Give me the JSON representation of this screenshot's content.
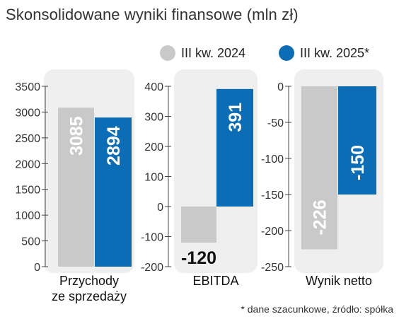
{
  "title": "Skonsolidowane wyniki finansowe (mln zł)",
  "note": "* dane szacunkowe, źródło: spółka",
  "colors": {
    "series_a": "#c9c9c9",
    "series_b": "#0b6db5",
    "panel_bg": "#efefef",
    "axis": "#444444"
  },
  "chart_data": {
    "type": "bar",
    "title": "Skonsolidowane wyniki finansowe (mln zł)",
    "legend": "top-right",
    "grid": false,
    "series_names": [
      "III kw. 2024",
      "III kw. 2025*"
    ],
    "panels": [
      {
        "category": "Przychody ze sprzedaży",
        "category_lines": [
          "Przychody",
          "ze sprzedaży"
        ],
        "ylim": [
          0,
          3500
        ],
        "ticks": [
          0,
          500,
          1000,
          1500,
          2000,
          2500,
          3000,
          3500
        ],
        "tick_labels": [
          "0",
          "500",
          "1000",
          "1500",
          "2000",
          "2500",
          "3000",
          "3500"
        ],
        "values": [
          3085,
          2894
        ],
        "value_labels": [
          "3085",
          "2894"
        ]
      },
      {
        "category": "EBITDA",
        "category_lines": [
          "EBITDA"
        ],
        "ylim": [
          -200,
          400
        ],
        "ticks": [
          -200,
          -100,
          0,
          100,
          200,
          300,
          400
        ],
        "tick_labels": [
          "-200",
          "-100",
          "0",
          "100",
          "200",
          "300",
          "400"
        ],
        "values": [
          -120,
          391
        ],
        "value_labels": [
          "-120",
          "391"
        ]
      },
      {
        "category": "Wynik netto",
        "category_lines": [
          "Wynik netto"
        ],
        "ylim": [
          -250,
          0
        ],
        "ticks": [
          -250,
          -200,
          -150,
          -100,
          -50,
          0
        ],
        "tick_labels": [
          "-250",
          "-200",
          "-150",
          "-100",
          "-50",
          "0"
        ],
        "values": [
          -226,
          -150
        ],
        "value_labels": [
          "-226",
          "-150"
        ]
      }
    ]
  }
}
